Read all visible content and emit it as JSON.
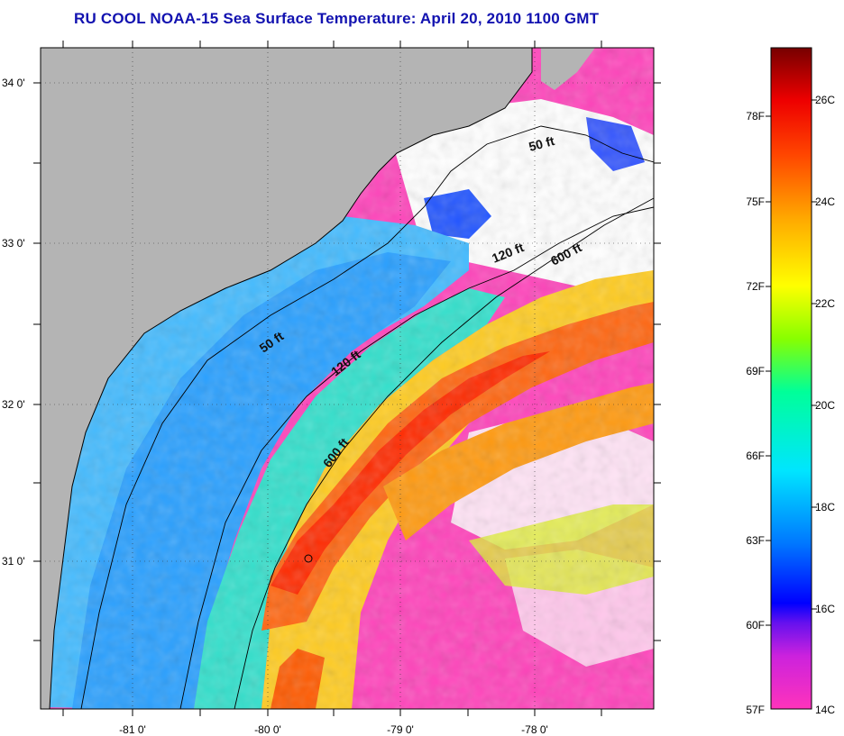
{
  "title": "RU COOL  NOAA-15  Sea Surface Temperature:  April 20, 2010 1100 GMT",
  "map": {
    "lat_labels": [
      "34 0'",
      "33 0'",
      "32 0'",
      "31 0'"
    ],
    "lon_labels": [
      "-81 0'",
      "-80 0'",
      "-79 0'",
      "-78 0'"
    ],
    "contour_labels": {
      "inner_50": "50 ft",
      "mid_120": "120 ft",
      "outer_600": "600 ft",
      "north_50": "50 ft",
      "north_120": "120 ft",
      "north_600": "600 ft"
    },
    "colors": {
      "land": "#b4b4b4",
      "cloud_mask": "#ffffff",
      "cold": "#ff33bb",
      "cool": "#3399ff",
      "mid": "#33ddcc",
      "warm": "#ffcc00",
      "hot": "#ff3300"
    }
  },
  "colorbar": {
    "fahrenheit": [
      "78F",
      "75F",
      "72F",
      "69F",
      "66F",
      "63F",
      "60F",
      "57F"
    ],
    "celsius": [
      "26C",
      "24C",
      "22C",
      "20C",
      "18C",
      "16C",
      "14C"
    ],
    "range_c": [
      14,
      27.5
    ],
    "stops": [
      "#ff33bb",
      "#aa22ee",
      "#0000ff",
      "#0088ff",
      "#00ffff",
      "#00ff88",
      "#aaff00",
      "#ffff00",
      "#ffaa00",
      "#ff5500",
      "#ff0000",
      "#aa0000",
      "#660000"
    ]
  }
}
